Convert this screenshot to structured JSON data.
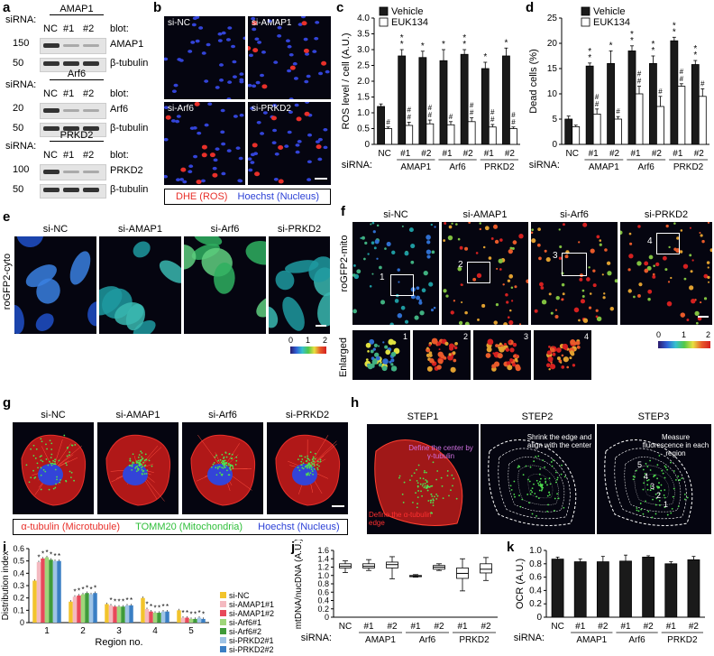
{
  "panels": {
    "a": {
      "label": "a",
      "sirna_prefix": "siRNA:",
      "blot_prefix": "blot:",
      "lane_labels": [
        "NC",
        "#1",
        "#2"
      ],
      "blots": [
        {
          "target": "AMAP1",
          "mw": "150",
          "loading": "β-tubulin",
          "loading_mw": "50"
        },
        {
          "target": "Arf6",
          "mw": "20",
          "loading": "β-tubulin",
          "loading_mw": "50"
        },
        {
          "target": "PRKD2",
          "mw": "100",
          "loading": "β-tubulin",
          "loading_mw": "50"
        }
      ]
    },
    "b": {
      "label": "b",
      "images": [
        "si-NC",
        "si-AMAP1",
        "si-Arf6",
        "si-PRKD2"
      ],
      "legend_red": "DHE (ROS)",
      "legend_blue": "Hoechst (Nucleus)"
    },
    "c": {
      "label": "c"
    },
    "d": {
      "label": "d"
    },
    "e": {
      "label": "e",
      "side_label": "roGFP2-cyto",
      "images": [
        "si-NC",
        "si-AMAP1",
        "si-Arf6",
        "si-PRKD2"
      ],
      "scale_ticks": [
        "0",
        "1",
        "2"
      ]
    },
    "f": {
      "label": "f",
      "side_label": "roGFP2-mito",
      "images": [
        "si-NC",
        "si-AMAP1",
        "si-Arf6",
        "si-PRKD2"
      ],
      "box_numbers": [
        "1",
        "2",
        "3",
        "4"
      ],
      "enlarged_label": "Enlarged",
      "scale_ticks": [
        "0",
        "1",
        "2"
      ]
    },
    "g": {
      "label": "g",
      "images": [
        "si-NC",
        "si-AMAP1",
        "si-Arf6",
        "si-PRKD2"
      ],
      "legend_red": "α-tubulin (Microtubule)",
      "legend_green": "TOMM20 (Mitochondria)",
      "legend_blue": "Hoechst (Nucleus)"
    },
    "h": {
      "label": "h",
      "steps": [
        "STEP1",
        "STEP2",
        "STEP3"
      ],
      "note_center": "Define the center by γ-tubulin",
      "note_edge": "Define the α-tubulin edge",
      "note_step2": "Shrink the edge and align with the center",
      "note_step3": "Measure fluorescence in each region",
      "region_numbers": [
        "5",
        "4",
        "3",
        "2",
        "1"
      ]
    },
    "i": {
      "label": "i"
    },
    "j": {
      "label": "j"
    },
    "k": {
      "label": "k"
    }
  },
  "colors": {
    "ros_red": "#e8302a",
    "nucleus_blue": "#2a3fd6",
    "mito_green": "#2fbf3a",
    "bar_black": "#1a1a1a"
  },
  "chart_data": [
    {
      "id": "c",
      "type": "bar",
      "ylabel": "ROS level / cell (A.U.)",
      "xlabel": "siRNA:",
      "categories": [
        "NC",
        "#1",
        "#2",
        "#1",
        "#2",
        "#1",
        "#2"
      ],
      "groups": [
        "AMAP1",
        "Arf6",
        "PRKD2"
      ],
      "ylim": [
        0,
        4.0
      ],
      "yticks": [
        "0",
        "0.5",
        "1.0",
        "1.5",
        "2.0",
        "2.5",
        "3.0",
        "3.5",
        "4.0"
      ],
      "series": [
        {
          "name": "Vehicle",
          "color": "#1a1a1a",
          "values": [
            1.2,
            2.8,
            2.75,
            2.65,
            2.85,
            2.4,
            2.8
          ],
          "errors": [
            0.08,
            0.2,
            0.2,
            0.35,
            0.15,
            0.2,
            0.25
          ]
        },
        {
          "name": "EUK134",
          "color": "#ffffff",
          "values": [
            0.5,
            0.6,
            0.65,
            0.62,
            0.72,
            0.55,
            0.5
          ],
          "errors": [
            0.05,
            0.1,
            0.12,
            0.1,
            0.12,
            0.08,
            0.05
          ]
        }
      ],
      "stars": [
        "",
        "*\n*",
        "*",
        "*",
        "*\n*",
        "*",
        "*"
      ],
      "hashes": [
        "#",
        "#\n#",
        "#\n#",
        "#",
        "#\n#",
        "#\n#",
        "#\n#"
      ],
      "legend": "top-right"
    },
    {
      "id": "d",
      "type": "bar",
      "ylabel": "Dead cells (%)",
      "xlabel": "siRNA:",
      "categories": [
        "NC",
        "#1",
        "#2",
        "#1",
        "#2",
        "#1",
        "#2"
      ],
      "groups": [
        "AMAP1",
        "Arf6",
        "PRKD2"
      ],
      "ylim": [
        0,
        25
      ],
      "yticks": [
        "0",
        "5",
        "10",
        "15",
        "20",
        "25"
      ],
      "series": [
        {
          "name": "Vehicle",
          "color": "#1a1a1a",
          "values": [
            5.0,
            15.5,
            16.0,
            18.5,
            16.0,
            20.5,
            15.8
          ],
          "errors": [
            0.6,
            0.6,
            2.5,
            1.0,
            1.5,
            0.7,
            0.8
          ]
        },
        {
          "name": "EUK134",
          "color": "#ffffff",
          "values": [
            3.5,
            6.0,
            5.0,
            10.0,
            7.5,
            11.5,
            9.5
          ],
          "errors": [
            0.3,
            1.0,
            0.5,
            1.5,
            2.0,
            0.5,
            1.5
          ]
        }
      ],
      "stars": [
        "",
        "*\n*",
        "*",
        "*\n*",
        "*\n*",
        "*\n*",
        "*\n*"
      ],
      "hashes": [
        "",
        "#\n#",
        "#",
        "#\n#",
        "#",
        "#\n#",
        "#"
      ],
      "legend": "top-right"
    },
    {
      "id": "i",
      "type": "bar",
      "ylabel": "Distribution index",
      "xlabel": "Region no.",
      "categories": [
        "1",
        "2",
        "3",
        "4",
        "5"
      ],
      "ylim": [
        0,
        0.6
      ],
      "yticks": [
        "0",
        "0.1",
        "0.2",
        "0.3",
        "0.4",
        "0.5",
        "0.6"
      ],
      "series": [
        {
          "name": "si-NC",
          "color": "#f2c42c",
          "values": [
            0.34,
            0.17,
            0.15,
            0.2,
            0.1
          ]
        },
        {
          "name": "si-AMAP1#1",
          "color": "#f4b9c0",
          "values": [
            0.49,
            0.21,
            0.14,
            0.11,
            0.04
          ]
        },
        {
          "name": "si-AMAP1#2",
          "color": "#e8495a",
          "values": [
            0.52,
            0.22,
            0.13,
            0.09,
            0.04
          ]
        },
        {
          "name": "si-Arf6#1",
          "color": "#9fd67a",
          "values": [
            0.53,
            0.23,
            0.13,
            0.08,
            0.03
          ]
        },
        {
          "name": "si-Arf6#2",
          "color": "#3f9b3a",
          "values": [
            0.51,
            0.24,
            0.13,
            0.08,
            0.03
          ]
        },
        {
          "name": "si-PRKD2#1",
          "color": "#9fc4e6",
          "values": [
            0.5,
            0.23,
            0.14,
            0.09,
            0.04
          ]
        },
        {
          "name": "si-PRKD2#2",
          "color": "#3a7fc4",
          "values": [
            0.5,
            0.24,
            0.14,
            0.09,
            0.03
          ]
        }
      ],
      "legend": "right"
    },
    {
      "id": "j",
      "type": "box",
      "ylabel": "mtDNA/nucDNA (A.U.)",
      "xlabel": "siRNA:",
      "categories": [
        "NC",
        "#1",
        "#2",
        "#1",
        "#2",
        "#1",
        "#2"
      ],
      "groups": [
        "AMAP1",
        "Arf6",
        "PRKD2"
      ],
      "ylim": [
        0,
        1.6
      ],
      "yticks": [
        "0",
        "0.2",
        "0.4",
        "0.6",
        "0.8",
        "1.0",
        "1.2",
        "1.4",
        "1.6"
      ],
      "boxes": [
        {
          "min": 1.07,
          "q1": 1.18,
          "median": 1.22,
          "q3": 1.28,
          "max": 1.35
        },
        {
          "min": 1.12,
          "q1": 1.18,
          "median": 1.22,
          "q3": 1.28,
          "max": 1.38
        },
        {
          "min": 0.92,
          "q1": 1.18,
          "median": 1.26,
          "q3": 1.32,
          "max": 1.45
        },
        {
          "min": 0.96,
          "q1": 0.97,
          "median": 0.99,
          "q3": 1.0,
          "max": 1.02
        },
        {
          "min": 1.12,
          "q1": 1.15,
          "median": 1.2,
          "q3": 1.24,
          "max": 1.28
        },
        {
          "min": 0.63,
          "q1": 0.93,
          "median": 1.05,
          "q3": 1.18,
          "max": 1.4
        },
        {
          "min": 0.88,
          "q1": 1.06,
          "median": 1.15,
          "q3": 1.28,
          "max": 1.43
        }
      ]
    },
    {
      "id": "k",
      "type": "bar",
      "ylabel": "OCR (A.U.)",
      "xlabel": "siRNA:",
      "categories": [
        "NC",
        "#1",
        "#2",
        "#1",
        "#2",
        "#1",
        "#2"
      ],
      "groups": [
        "AMAP1",
        "Arf6",
        "PRKD2"
      ],
      "ylim": [
        0,
        1.0
      ],
      "yticks": [
        "0",
        "0.2",
        "0.4",
        "0.6",
        "0.8",
        "1.0"
      ],
      "series": [
        {
          "name": "",
          "color": "#1a1a1a",
          "values": [
            0.87,
            0.83,
            0.83,
            0.84,
            0.9,
            0.8,
            0.86
          ],
          "errors": [
            0.03,
            0.04,
            0.08,
            0.09,
            0.02,
            0.03,
            0.05
          ]
        }
      ]
    }
  ]
}
